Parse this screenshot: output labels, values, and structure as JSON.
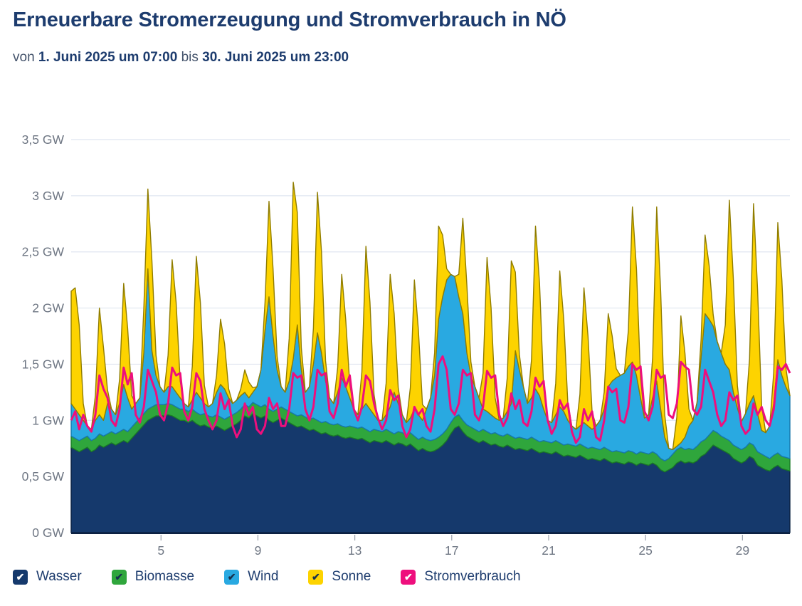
{
  "header": {
    "title": "Erneuerbare Stromerzeugung und Stromverbrauch in NÖ",
    "von_label": "von",
    "period_start": "1. Juni 2025 um 07:00",
    "bis_label": "bis",
    "period_end": "30. Juni 2025 um 23:00"
  },
  "legend": {
    "items": [
      {
        "label": "Wasser",
        "color": "#15396c",
        "check": "#ffffff"
      },
      {
        "label": "Biomasse",
        "color": "#2fa63c",
        "check": "#17314e"
      },
      {
        "label": "Wind",
        "color": "#29a9e1",
        "check": "#17314e"
      },
      {
        "label": "Sonne",
        "color": "#fdd300",
        "check": "#17314e"
      },
      {
        "label": "Stromverbrauch",
        "color": "#ee0f7d",
        "check": "#ffffff"
      }
    ]
  },
  "chart_data": {
    "type": "area",
    "title": "Erneuerbare Stromerzeugung und Stromverbrauch in NÖ",
    "subtitle": "von 1. Juni 2025 um 07:00 bis 30. Juni 2025 um 23:00",
    "unit": "GW",
    "ylim": [
      0,
      3.5
    ],
    "grid": true,
    "legend_position": "bottom",
    "y_ticks": [
      {
        "value": 3.5,
        "label": "3,5 GW"
      },
      {
        "value": 3.0,
        "label": "3 GW"
      },
      {
        "value": 2.5,
        "label": "2,5 GW"
      },
      {
        "value": 2.0,
        "label": "2 GW"
      },
      {
        "value": 1.5,
        "label": "1,5 GW"
      },
      {
        "value": 1.0,
        "label": "1 GW"
      },
      {
        "value": 0.5,
        "label": "0,5 GW"
      },
      {
        "value": 0.0,
        "label": "0 GW"
      }
    ],
    "x_ticks_days": [
      5,
      9,
      13,
      17,
      21,
      25,
      29
    ],
    "x_start_hour": 7,
    "x_end_hour": 719,
    "days": 30,
    "sample_hours": [
      3,
      7,
      11,
      15,
      19,
      23
    ],
    "axis_color": "#6e7683",
    "grid_color": "#dfe5f0",
    "series": [
      {
        "name": "Wasser",
        "type": "area",
        "fill": "#15396c",
        "stroke": "#0c2142",
        "values_by_day": [
          [
            0.78,
            0.76,
            0.74,
            0.72,
            0.74,
            0.76
          ],
          [
            0.72,
            0.74,
            0.78,
            0.76,
            0.78,
            0.8
          ],
          [
            0.78,
            0.8,
            0.82,
            0.8,
            0.84,
            0.88
          ],
          [
            0.92,
            0.96,
            1.0,
            1.02,
            1.04,
            1.04
          ],
          [
            1.04,
            1.05,
            1.04,
            1.02,
            1.0,
            1.0
          ],
          [
            0.98,
            1.0,
            0.97,
            0.95,
            0.96,
            0.94
          ],
          [
            0.93,
            0.95,
            0.93,
            0.91,
            0.93,
            0.95
          ],
          [
            0.97,
            1.0,
            1.04,
            1.02,
            1.06,
            1.04
          ],
          [
            1.02,
            1.04,
            1.0,
            0.98,
            1.0,
            1.02
          ],
          [
            1.0,
            0.98,
            0.96,
            0.94,
            0.95,
            0.93
          ],
          [
            0.91,
            0.92,
            0.9,
            0.88,
            0.89,
            0.87
          ],
          [
            0.86,
            0.87,
            0.85,
            0.84,
            0.85,
            0.84
          ],
          [
            0.83,
            0.84,
            0.82,
            0.8,
            0.82,
            0.81
          ],
          [
            0.8,
            0.82,
            0.8,
            0.78,
            0.8,
            0.79
          ],
          [
            0.77,
            0.79,
            0.76,
            0.73,
            0.75,
            0.73
          ],
          [
            0.72,
            0.73,
            0.75,
            0.78,
            0.82,
            0.88
          ],
          [
            0.93,
            0.95,
            0.9,
            0.86,
            0.84,
            0.82
          ],
          [
            0.8,
            0.82,
            0.8,
            0.78,
            0.79,
            0.77
          ],
          [
            0.76,
            0.78,
            0.76,
            0.74,
            0.75,
            0.74
          ],
          [
            0.73,
            0.75,
            0.73,
            0.71,
            0.72,
            0.71
          ],
          [
            0.7,
            0.72,
            0.7,
            0.68,
            0.69,
            0.68
          ],
          [
            0.67,
            0.69,
            0.67,
            0.65,
            0.66,
            0.65
          ],
          [
            0.64,
            0.66,
            0.64,
            0.62,
            0.63,
            0.62
          ],
          [
            0.61,
            0.63,
            0.62,
            0.6,
            0.62,
            0.61
          ],
          [
            0.6,
            0.62,
            0.6,
            0.56,
            0.54,
            0.56
          ],
          [
            0.58,
            0.62,
            0.64,
            0.62,
            0.63,
            0.62
          ],
          [
            0.64,
            0.68,
            0.7,
            0.74,
            0.78,
            0.76
          ],
          [
            0.74,
            0.72,
            0.7,
            0.66,
            0.64,
            0.62
          ],
          [
            0.64,
            0.68,
            0.66,
            0.6,
            0.58,
            0.56
          ],
          [
            0.55,
            0.58,
            0.6,
            0.57,
            0.56,
            0.55
          ]
        ]
      },
      {
        "name": "Biomasse",
        "type": "area",
        "fill": "#2fa63c",
        "stroke": "#1b7a27",
        "daily_values": [
          0.1,
          0.1,
          0.1,
          0.1,
          0.1,
          0.1,
          0.1,
          0.1,
          0.1,
          0.1,
          0.1,
          0.1,
          0.1,
          0.1,
          0.1,
          0.1,
          0.1,
          0.1,
          0.1,
          0.1,
          0.1,
          0.1,
          0.1,
          0.1,
          0.1,
          0.12,
          0.13,
          0.12,
          0.12,
          0.11
        ]
      },
      {
        "name": "Wind",
        "type": "area",
        "fill": "#29a9e1",
        "stroke": "#1878ab",
        "values_by_day": [
          [
            0.3,
            0.29,
            0.26,
            0.23,
            0.16,
            0.09
          ],
          [
            0.1,
            0.16,
            0.17,
            0.14,
            0.27,
            0.2
          ],
          [
            0.17,
            0.25,
            0.4,
            0.3,
            0.16,
            0.17
          ],
          [
            0.18,
            0.54,
            1.25,
            0.5,
            0.26,
            0.16
          ],
          [
            0.11,
            0.15,
            0.16,
            0.13,
            0.1,
            0.05
          ],
          [
            0.04,
            0.08,
            0.18,
            0.15,
            0.09,
            0.08
          ],
          [
            0.12,
            0.2,
            0.29,
            0.27,
            0.17,
            0.1
          ],
          [
            0.11,
            0.12,
            0.11,
            0.08,
            0.09,
            0.16
          ],
          [
            0.33,
            0.66,
            1.0,
            0.67,
            0.35,
            0.18
          ],
          [
            0.15,
            0.27,
            0.49,
            0.81,
            0.4,
            0.22
          ],
          [
            0.29,
            0.48,
            0.78,
            0.62,
            0.36,
            0.23
          ],
          [
            0.19,
            0.28,
            0.43,
            0.36,
            0.25,
            0.16
          ],
          [
            0.12,
            0.16,
            0.23,
            0.2,
            0.13,
            0.09
          ],
          [
            0.1,
            0.13,
            0.22,
            0.37,
            0.25,
            0.16
          ],
          [
            0.11,
            0.13,
            0.24,
            0.22,
            0.15,
            0.27
          ],
          [
            0.38,
            0.57,
            1.05,
            1.22,
            1.33,
            1.32
          ],
          [
            1.25,
            1.05,
            0.95,
            0.64,
            0.46,
            0.38
          ],
          [
            0.3,
            0.18,
            0.18,
            0.17,
            0.13,
            0.13
          ],
          [
            0.16,
            0.2,
            0.29,
            0.78,
            0.6,
            0.46
          ],
          [
            0.32,
            0.35,
            0.45,
            0.41,
            0.28,
            0.19
          ],
          [
            0.18,
            0.23,
            0.32,
            0.3,
            0.21,
            0.17
          ],
          [
            0.15,
            0.16,
            0.21,
            0.2,
            0.16,
            0.2
          ],
          [
            0.26,
            0.34,
            0.56,
            0.63,
            0.65,
            0.68
          ],
          [
            0.71,
            0.75,
            0.8,
            0.7,
            0.48,
            0.31
          ],
          [
            0.35,
            0.48,
            0.65,
            0.44,
            0.21,
            0.09
          ],
          [
            0.04,
            0.03,
            0.04,
            0.11,
            0.2,
            0.26
          ],
          [
            0.39,
            0.75,
            1.12,
            1.03,
            0.93,
            0.81
          ],
          [
            0.74,
            0.66,
            0.63,
            0.47,
            0.35,
            0.25
          ],
          [
            0.3,
            0.35,
            0.44,
            0.34,
            0.21,
            0.21
          ],
          [
            0.29,
            0.46,
            0.83,
            0.72,
            0.63,
            0.56
          ]
        ]
      },
      {
        "name": "Sonne",
        "type": "area",
        "fill": "#fdd300",
        "stroke": "#907d00",
        "values_by_day": [
          [
            0,
            1.0,
            1.08,
            0.8,
            0.15,
            0
          ],
          [
            0,
            0.22,
            0.95,
            0.65,
            0.12,
            0
          ],
          [
            0,
            0.22,
            0.9,
            0.62,
            0.12,
            0
          ],
          [
            0,
            0.4,
            0.71,
            0.8,
            0.18,
            0
          ],
          [
            0,
            0.28,
            1.13,
            0.8,
            0.15,
            0
          ],
          [
            0,
            0.3,
            1.21,
            0.85,
            0.16,
            0
          ],
          [
            0,
            0.15,
            0.58,
            0.4,
            0.08,
            0
          ],
          [
            0,
            0.06,
            0.2,
            0.14,
            0.04,
            0
          ],
          [
            0,
            0.25,
            0.85,
            0.6,
            0.12,
            0
          ],
          [
            0,
            0.38,
            1.57,
            1.0,
            0.2,
            0
          ],
          [
            0,
            0.32,
            1.25,
            0.9,
            0.18,
            0
          ],
          [
            0,
            0.22,
            0.92,
            0.6,
            0.12,
            0
          ],
          [
            0,
            0.33,
            1.4,
            0.95,
            0.18,
            0
          ],
          [
            0,
            0.28,
            1.18,
            0.7,
            0.14,
            0
          ],
          [
            0,
            0.27,
            1.15,
            0.75,
            0.14,
            0
          ],
          [
            0,
            0.2,
            0.83,
            0.55,
            0.1,
            0
          ],
          [
            0,
            0.2,
            0.85,
            0.6,
            0.12,
            0
          ],
          [
            0,
            0.32,
            1.37,
            0.95,
            0.18,
            0
          ],
          [
            0,
            0.3,
            1.27,
            0.7,
            0.14,
            0
          ],
          [
            0,
            0.34,
            1.45,
            1.0,
            0.2,
            0
          ],
          [
            0,
            0.28,
            1.21,
            0.82,
            0.16,
            0
          ],
          [
            0,
            0.28,
            1.2,
            0.8,
            0.16,
            0
          ],
          [
            0,
            0.15,
            0.65,
            0.4,
            0.08,
            0
          ],
          [
            0,
            0.32,
            1.38,
            0.95,
            0.18,
            0
          ],
          [
            0,
            0.36,
            1.55,
            1.05,
            0.2,
            0
          ],
          [
            0,
            0.26,
            1.13,
            0.75,
            0.15,
            0
          ],
          [
            0,
            0.16,
            0.7,
            0.48,
            0.1,
            0
          ],
          [
            0,
            0.35,
            1.51,
            1.0,
            0.2,
            0
          ],
          [
            0,
            0.4,
            1.71,
            1.1,
            0.22,
            0
          ],
          [
            0,
            0.28,
            1.22,
            0.85,
            0.17,
            0
          ]
        ]
      },
      {
        "name": "Stromverbrauch",
        "type": "line",
        "color": "#ee0f7d",
        "values_by_day": [
          [
            0.95,
            1.0,
            1.08,
            0.92,
            1.05,
            0.95
          ],
          [
            0.9,
            1.05,
            1.4,
            1.28,
            1.2,
            1.0
          ],
          [
            0.95,
            1.1,
            1.47,
            1.32,
            1.42,
            1.05
          ],
          [
            0.98,
            1.12,
            1.45,
            1.35,
            1.25,
            1.05
          ],
          [
            1.0,
            1.15,
            1.47,
            1.4,
            1.42,
            1.08
          ],
          [
            1.0,
            1.12,
            1.42,
            1.35,
            1.1,
            1.0
          ],
          [
            0.92,
            1.0,
            1.24,
            1.1,
            1.18,
            0.95
          ],
          [
            0.85,
            0.92,
            1.15,
            1.05,
            1.12,
            0.92
          ],
          [
            0.88,
            0.95,
            1.2,
            1.1,
            1.15,
            0.95
          ],
          [
            0.95,
            1.1,
            1.42,
            1.38,
            1.4,
            1.1
          ],
          [
            1.0,
            1.12,
            1.45,
            1.4,
            1.42,
            1.08
          ],
          [
            1.02,
            1.15,
            1.45,
            1.3,
            1.4,
            1.1
          ],
          [
            1.0,
            1.12,
            1.4,
            1.35,
            1.15,
            1.02
          ],
          [
            0.92,
            1.0,
            1.27,
            1.18,
            1.22,
            0.95
          ],
          [
            0.85,
            0.92,
            1.12,
            1.05,
            1.1,
            0.95
          ],
          [
            0.9,
            1.1,
            1.5,
            1.57,
            1.45,
            1.1
          ],
          [
            1.05,
            1.15,
            1.45,
            1.4,
            1.42,
            1.05
          ],
          [
            1.0,
            1.12,
            1.44,
            1.38,
            1.4,
            1.05
          ],
          [
            0.95,
            1.02,
            1.24,
            1.1,
            1.18,
            0.98
          ],
          [
            0.95,
            1.08,
            1.38,
            1.3,
            1.35,
            1.0
          ],
          [
            0.88,
            0.95,
            1.18,
            1.1,
            1.15,
            0.9
          ],
          [
            0.8,
            0.85,
            1.1,
            1.0,
            1.08,
            0.85
          ],
          [
            0.82,
            1.0,
            1.3,
            1.25,
            1.28,
            1.0
          ],
          [
            0.98,
            1.12,
            1.5,
            1.45,
            1.48,
            1.08
          ],
          [
            1.0,
            1.12,
            1.45,
            1.38,
            1.4,
            1.05
          ],
          [
            1.02,
            1.15,
            1.52,
            1.48,
            1.45,
            1.1
          ],
          [
            1.05,
            1.12,
            1.45,
            1.35,
            1.25,
            1.05
          ],
          [
            0.95,
            1.0,
            1.25,
            1.18,
            1.22,
            0.95
          ],
          [
            0.88,
            0.92,
            1.15,
            1.05,
            1.12,
            1.0
          ],
          [
            0.95,
            1.1,
            1.48,
            1.45,
            1.5,
            1.42
          ]
        ]
      }
    ]
  }
}
